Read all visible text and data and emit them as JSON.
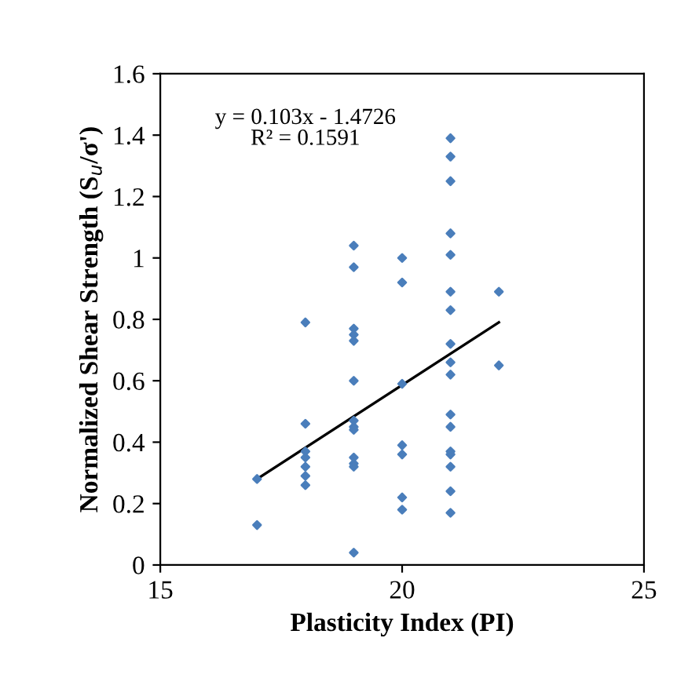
{
  "chart_data": {
    "type": "scatter",
    "xlabel": "Plasticity Index (PI)",
    "ylabel": "Normalized Shear Strength (S$_{u}$/σ')",
    "xlim": [
      15,
      25
    ],
    "xticks": [
      15,
      20,
      25
    ],
    "ylim": [
      0,
      1.6
    ],
    "yticks": [
      0,
      0.2,
      0.4,
      0.6,
      0.8,
      1,
      1.2,
      1.4,
      1.6
    ],
    "grid": false,
    "legend": false,
    "marker": "diamond",
    "annotations": [
      "y = 0.103x - 1.4726\nR² = 0.1591"
    ],
    "series": [
      {
        "color": "#4a7ebb",
        "x": [
          17,
          17,
          18,
          18,
          18,
          18,
          18,
          18,
          18,
          19,
          19,
          19,
          19,
          19,
          19,
          19,
          19,
          19,
          19,
          19,
          19,
          19,
          20,
          20,
          20,
          20,
          20,
          20,
          20,
          21,
          21,
          21,
          21,
          21,
          21,
          21,
          21,
          21,
          21,
          21,
          21,
          21,
          21,
          21,
          21,
          21,
          22,
          22
        ],
        "values": [
          0.28,
          0.13,
          0.79,
          0.46,
          0.37,
          0.35,
          0.32,
          0.29,
          0.26,
          1.04,
          0.97,
          0.77,
          0.75,
          0.73,
          0.6,
          0.47,
          0.45,
          0.44,
          0.35,
          0.33,
          0.32,
          0.04,
          1.0,
          0.92,
          0.59,
          0.39,
          0.36,
          0.22,
          0.18,
          1.39,
          1.33,
          1.25,
          1.08,
          1.01,
          0.89,
          0.83,
          0.72,
          0.66,
          0.62,
          0.49,
          0.45,
          0.37,
          0.36,
          0.32,
          0.24,
          0.17,
          0.89,
          0.65
        ]
      },
      {
        "type": "line",
        "color": "#000000",
        "x": [
          17,
          22
        ],
        "values": [
          0.28,
          0.79
        ],
        "marker": "none",
        "line_style": "solid"
      }
    ]
  }
}
